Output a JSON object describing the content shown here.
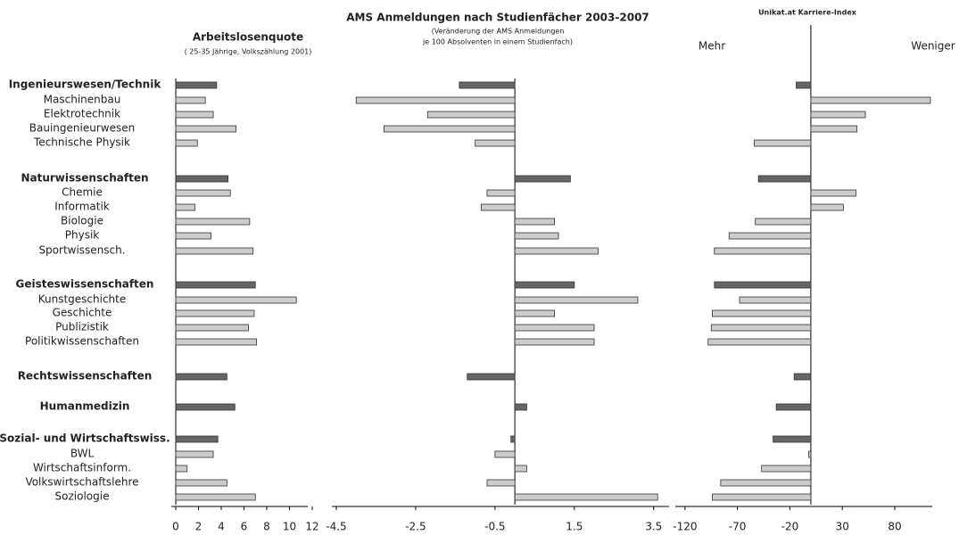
{
  "chart_data": [
    {
      "type": "bar",
      "orientation": "horizontal",
      "title": "Arbeitslosenquote",
      "subtitle": "( 25-35 Jährige, Volkszählung 2001)",
      "categories": [
        "Ingenieurswesen/Technik",
        "Maschinenbau",
        "Elektrotechnik",
        "Bauingenieurwesen",
        "Technische Physik",
        "Naturwissenschaften",
        "Chemie",
        "Informatik",
        "Biologie",
        "Physik",
        "Sportwissensch.",
        "Geisteswissenschaften",
        "Kunstgeschichte",
        "Geschichte",
        "Publizistik",
        "Politikwissenschaften",
        "Rechtswissenschaften",
        "Humanmedizin",
        "Sozial- und Wirtschaftswiss.",
        "BWL",
        "Wirtschaftsinform.",
        "Volkswirtschaftslehre",
        "Soziologie"
      ],
      "category_weights": [
        "bold",
        "normal",
        "normal",
        "normal",
        "normal",
        "bold",
        "normal",
        "normal",
        "normal",
        "normal",
        "normal",
        "bold",
        "normal",
        "normal",
        "normal",
        "normal",
        "bold",
        "bold",
        "bold",
        "normal",
        "normal",
        "normal",
        "normal"
      ],
      "values": [
        3.6,
        2.6,
        3.3,
        5.3,
        1.9,
        4.6,
        4.8,
        1.7,
        6.5,
        3.1,
        6.8,
        7.0,
        10.6,
        6.9,
        6.4,
        7.1,
        4.5,
        5.2,
        3.7,
        3.3,
        1.0,
        4.5,
        7.0
      ],
      "colors": [
        "#666666",
        "#cccccc",
        "#cccccc",
        "#cccccc",
        "#cccccc",
        "#666666",
        "#cccccc",
        "#cccccc",
        "#cccccc",
        "#cccccc",
        "#cccccc",
        "#666666",
        "#cccccc",
        "#cccccc",
        "#cccccc",
        "#cccccc",
        "#666666",
        "#666666",
        "#666666",
        "#cccccc",
        "#cccccc",
        "#cccccc",
        "#cccccc"
      ],
      "xlim": [
        0,
        12
      ],
      "xticks": [
        0,
        2,
        4,
        6,
        8,
        10,
        12
      ]
    },
    {
      "type": "bar",
      "orientation": "horizontal",
      "title": "AMS Anmeldungen nach Studienfächer 2003-2007",
      "subtitle": [
        "(Veränderung der AMS Anmeldungen",
        "je 100 Absolventen in einem Studienfach)"
      ],
      "values": [
        -1.4,
        -4.0,
        -2.2,
        -3.3,
        -1.0,
        1.4,
        -0.7,
        -0.85,
        1.0,
        1.1,
        2.1,
        1.5,
        3.1,
        1.0,
        2.0,
        2.0,
        -1.2,
        0.3,
        -0.1,
        -0.5,
        0.3,
        -0.7,
        3.6
      ],
      "colors": [
        "#666666",
        "#cccccc",
        "#cccccc",
        "#cccccc",
        "#cccccc",
        "#666666",
        "#cccccc",
        "#cccccc",
        "#cccccc",
        "#cccccc",
        "#cccccc",
        "#666666",
        "#cccccc",
        "#cccccc",
        "#cccccc",
        "#cccccc",
        "#666666",
        "#666666",
        "#666666",
        "#cccccc",
        "#cccccc",
        "#cccccc",
        "#cccccc"
      ],
      "xlim": [
        -4.5,
        4.0
      ],
      "xticks": [
        -4.5,
        -2.5,
        -0.5,
        1.5,
        3.5
      ]
    },
    {
      "type": "bar",
      "orientation": "horizontal",
      "title": "Unikat.at Karriere-Index",
      "left_label": "Mehr",
      "right_label": "Weniger",
      "values": [
        -14,
        114,
        52,
        44,
        -54,
        -50,
        43,
        31,
        -53,
        -78,
        -92,
        -92,
        -68,
        -94,
        -95,
        -98,
        -16,
        -33,
        -36,
        -2,
        -47,
        -86,
        -94
      ],
      "colors": [
        "#666666",
        "#cccccc",
        "#cccccc",
        "#cccccc",
        "#cccccc",
        "#666666",
        "#cccccc",
        "#cccccc",
        "#cccccc",
        "#cccccc",
        "#cccccc",
        "#666666",
        "#cccccc",
        "#cccccc",
        "#cccccc",
        "#cccccc",
        "#666666",
        "#666666",
        "#666666",
        "#cccccc",
        "#cccccc",
        "#cccccc",
        "#cccccc"
      ],
      "xlim": [
        -125,
        120
      ],
      "xticks": [
        -120,
        -70,
        -20,
        30,
        80
      ]
    }
  ]
}
